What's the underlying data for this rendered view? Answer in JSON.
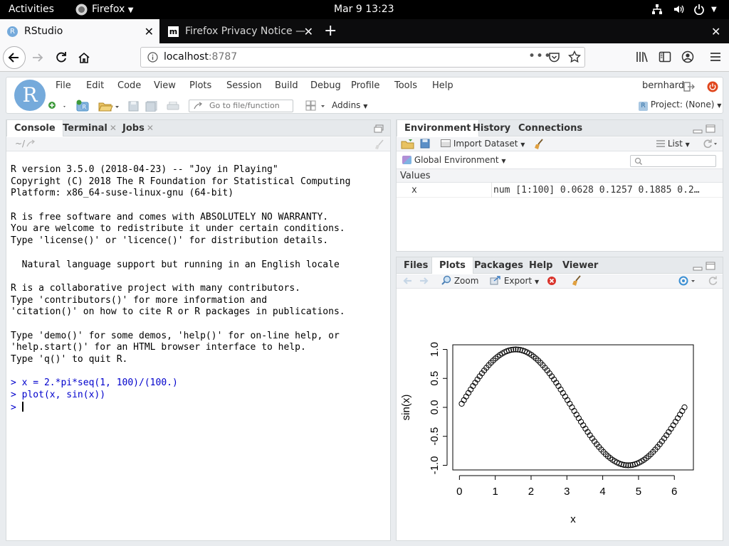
{
  "gnome": {
    "activities": "Activities",
    "app_name": "Firefox",
    "clock": "Mar 9  13:23"
  },
  "firefox": {
    "tabs": [
      {
        "title": "RStudio",
        "active": true
      },
      {
        "title": "Firefox Privacy Notice —",
        "active": false
      }
    ],
    "url_host": "localhost",
    "url_port": ":8787"
  },
  "rstudio": {
    "menu": [
      "File",
      "Edit",
      "Code",
      "View",
      "Plots",
      "Session",
      "Build",
      "Debug",
      "Profile",
      "Tools",
      "Help"
    ],
    "user": "bernhard",
    "goto_placeholder": "Go to file/function",
    "addins": "Addins",
    "project": "Project: (None)",
    "logo_letter": "R"
  },
  "console_pane": {
    "tabs": [
      "Console",
      "Terminal",
      "Jobs"
    ],
    "path": "~/",
    "lines": [
      {
        "text": "R version 3.5.0 (2018-04-23) -- \"Joy in Playing\"",
        "cmd": false
      },
      {
        "text": "Copyright (C) 2018 The R Foundation for Statistical Computing",
        "cmd": false
      },
      {
        "text": "Platform: x86_64-suse-linux-gnu (64-bit)",
        "cmd": false
      },
      {
        "text": "",
        "cmd": false
      },
      {
        "text": "R is free software and comes with ABSOLUTELY NO WARRANTY.",
        "cmd": false
      },
      {
        "text": "You are welcome to redistribute it under certain conditions.",
        "cmd": false
      },
      {
        "text": "Type 'license()' or 'licence()' for distribution details.",
        "cmd": false
      },
      {
        "text": "",
        "cmd": false
      },
      {
        "text": "  Natural language support but running in an English locale",
        "cmd": false
      },
      {
        "text": "",
        "cmd": false
      },
      {
        "text": "R is a collaborative project with many contributors.",
        "cmd": false
      },
      {
        "text": "Type 'contributors()' for more information and",
        "cmd": false
      },
      {
        "text": "'citation()' on how to cite R or R packages in publications.",
        "cmd": false
      },
      {
        "text": "",
        "cmd": false
      },
      {
        "text": "Type 'demo()' for some demos, 'help()' for on-line help, or",
        "cmd": false
      },
      {
        "text": "'help.start()' for an HTML browser interface to help.",
        "cmd": false
      },
      {
        "text": "Type 'q()' to quit R.",
        "cmd": false
      },
      {
        "text": "",
        "cmd": false
      },
      {
        "text": "> x = 2.*pi*seq(1, 100)/(100.)",
        "cmd": true
      },
      {
        "text": "> plot(x, sin(x))",
        "cmd": true
      }
    ],
    "prompt": "> "
  },
  "env_pane": {
    "tabs": [
      "Environment",
      "History",
      "Connections"
    ],
    "import_dataset": "Import Dataset",
    "list_view": "List",
    "scope": "Global Environment",
    "section": "Values",
    "rows": [
      {
        "name": "x",
        "value": "num [1:100] 0.0628 0.1257 0.1885 0.2…"
      }
    ]
  },
  "files_pane": {
    "tabs": [
      "Files",
      "Plots",
      "Packages",
      "Help",
      "Viewer"
    ],
    "zoom": "Zoom",
    "export": "Export"
  },
  "chart_data": {
    "type": "scatter",
    "title": "",
    "xlabel": "x",
    "ylabel": "sin(x)",
    "xlim": [
      0,
      6.4
    ],
    "ylim": [
      -1.0,
      1.0
    ],
    "x_ticks": [
      "0",
      "1",
      "2",
      "3",
      "4",
      "5",
      "6"
    ],
    "y_ticks": [
      "-1.0",
      "-0.5",
      "0.0",
      "0.5",
      "1.0"
    ],
    "marker": "open-circle",
    "x": [
      0.0628,
      0.1257,
      0.1885,
      0.2513,
      0.3142,
      0.377,
      0.4398,
      0.5027,
      0.5655,
      0.6283,
      0.6912,
      0.754,
      0.8168,
      0.8796,
      0.9425,
      1.0053,
      1.0681,
      1.131,
      1.1938,
      1.2566,
      1.3195,
      1.3823,
      1.4451,
      1.508,
      1.5708,
      1.6336,
      1.6965,
      1.7593,
      1.8221,
      1.885,
      1.9478,
      2.0106,
      2.0735,
      2.1363,
      2.1991,
      2.2619,
      2.3248,
      2.3876,
      2.4504,
      2.5133,
      2.5761,
      2.6389,
      2.7018,
      2.7646,
      2.8274,
      2.8903,
      2.9531,
      3.0159,
      3.0788,
      3.1416,
      3.2044,
      3.2673,
      3.3301,
      3.3929,
      3.4558,
      3.5186,
      3.5814,
      3.6442,
      3.7071,
      3.7699,
      3.8327,
      3.8956,
      3.9584,
      4.0212,
      4.0841,
      4.1469,
      4.2097,
      4.2726,
      4.3354,
      4.3982,
      4.4611,
      4.5239,
      4.5867,
      4.6496,
      4.7124,
      4.7752,
      4.8381,
      4.9009,
      4.9637,
      5.0265,
      5.0894,
      5.1522,
      5.215,
      5.2779,
      5.3407,
      5.4035,
      5.4664,
      5.5292,
      5.592,
      5.6549,
      5.7177,
      5.7805,
      5.8434,
      5.9062,
      5.969,
      6.0319,
      6.0947,
      6.1575,
      6.2204,
      6.2832
    ],
    "y": [
      0.0628,
      0.1253,
      0.1874,
      0.2487,
      0.309,
      0.3681,
      0.4258,
      0.4818,
      0.5358,
      0.5878,
      0.6374,
      0.6845,
      0.729,
      0.7705,
      0.809,
      0.8443,
      0.8763,
      0.9048,
      0.9298,
      0.9511,
      0.9686,
      0.9823,
      0.9921,
      0.998,
      1.0,
      0.998,
      0.9921,
      0.9823,
      0.9686,
      0.9511,
      0.9298,
      0.9048,
      0.8763,
      0.8443,
      0.809,
      0.7705,
      0.729,
      0.6845,
      0.6374,
      0.5878,
      0.5358,
      0.4818,
      0.4258,
      0.3681,
      0.309,
      0.2487,
      0.1874,
      0.1253,
      0.0628,
      0.0,
      -0.0628,
      -0.1253,
      -0.1874,
      -0.2487,
      -0.309,
      -0.3681,
      -0.4258,
      -0.4818,
      -0.5358,
      -0.5878,
      -0.6374,
      -0.6845,
      -0.729,
      -0.7705,
      -0.809,
      -0.8443,
      -0.8763,
      -0.9048,
      -0.9298,
      -0.9511,
      -0.9686,
      -0.9823,
      -0.9921,
      -0.998,
      -1.0,
      -0.998,
      -0.9921,
      -0.9823,
      -0.9686,
      -0.9511,
      -0.9298,
      -0.9048,
      -0.8763,
      -0.8443,
      -0.809,
      -0.7705,
      -0.729,
      -0.6845,
      -0.6374,
      -0.5878,
      -0.5358,
      -0.4818,
      -0.4258,
      -0.3681,
      -0.309,
      -0.2487,
      -0.1874,
      -0.1253,
      -0.0628,
      0.0
    ]
  },
  "colors": {
    "rstudio_blue": "#4a90c8",
    "console_cmd": "#0000cc",
    "close_red": "#e0471e"
  }
}
